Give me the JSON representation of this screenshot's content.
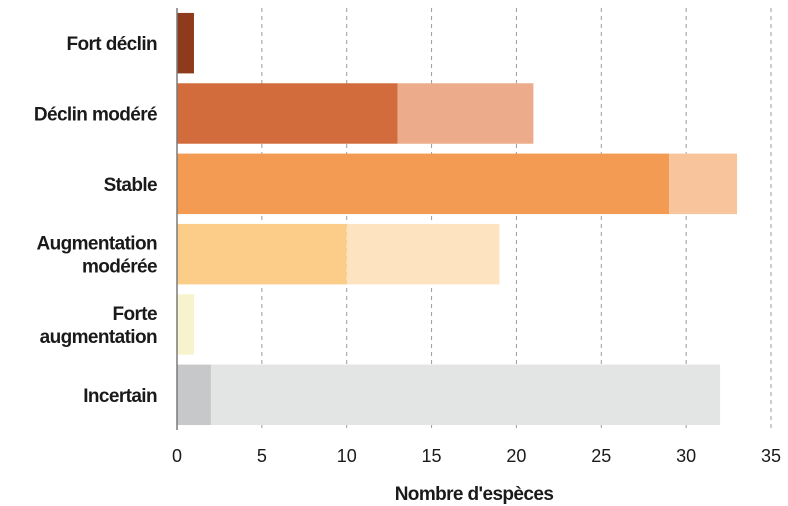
{
  "chart_data": {
    "type": "bar",
    "orientation": "horizontal",
    "stacked": true,
    "title": "",
    "xlabel": "Nombre d'espèces",
    "ylabel": "",
    "xlim": [
      0,
      35
    ],
    "xticks": [
      0,
      5,
      10,
      15,
      20,
      25,
      30,
      35
    ],
    "grid": "vertical dashed",
    "legend": "none",
    "categories": [
      [
        "Fort déclin"
      ],
      [
        "Déclin modéré"
      ],
      [
        "Stable"
      ],
      [
        "Augmentation",
        "modérée"
      ],
      [
        "Forte",
        "augmentation"
      ],
      [
        "Incertain"
      ]
    ],
    "segments": [
      [
        1,
        0
      ],
      [
        13,
        8
      ],
      [
        29,
        4
      ],
      [
        10,
        9
      ],
      [
        1,
        0
      ],
      [
        2,
        30
      ]
    ],
    "colors": [
      [
        "#8e3b1d",
        "#c98a6e"
      ],
      [
        "#d36c3d",
        "#ecab8b"
      ],
      [
        "#f39b52",
        "#f8c49b"
      ],
      [
        "#fccd88",
        "#fde3bf"
      ],
      [
        "#f7f3cc",
        "#fbf9e6"
      ],
      [
        "#c7c8ca",
        "#e3e5e5"
      ]
    ]
  }
}
